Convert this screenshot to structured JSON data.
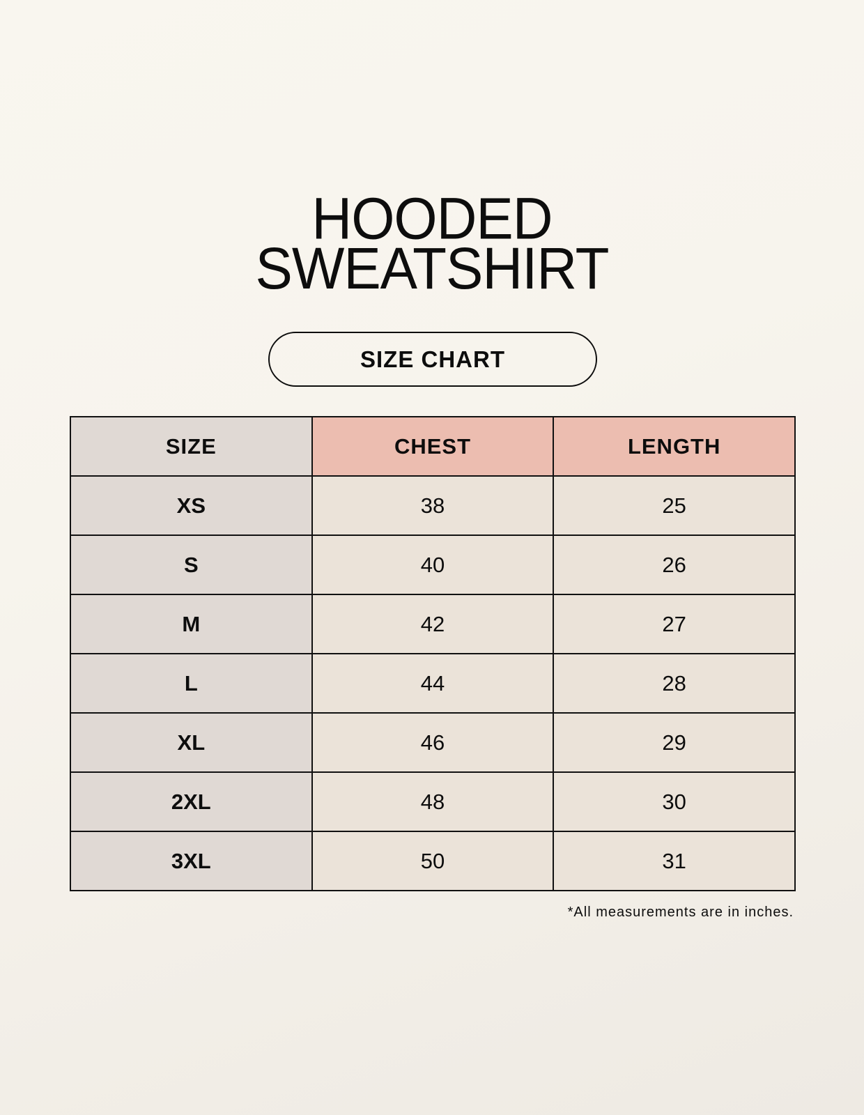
{
  "title": {
    "line1": "HOODED",
    "line2": "SWEATSHIRT"
  },
  "badge": "SIZE CHART",
  "table": {
    "headers": [
      "SIZE",
      "CHEST",
      "LENGTH"
    ],
    "rows": [
      [
        "XS",
        "38",
        "25"
      ],
      [
        "S",
        "40",
        "26"
      ],
      [
        "M",
        "42",
        "27"
      ],
      [
        "L",
        "44",
        "28"
      ],
      [
        "XL",
        "46",
        "29"
      ],
      [
        "2XL",
        "48",
        "30"
      ],
      [
        "3XL",
        "50",
        "31"
      ]
    ]
  },
  "footnote": "*All measurements are in inches.",
  "colors": {
    "size_column": "#e0d9d4",
    "header_accent": "#ecbdb0",
    "value_cells": "#ebe3d9"
  }
}
